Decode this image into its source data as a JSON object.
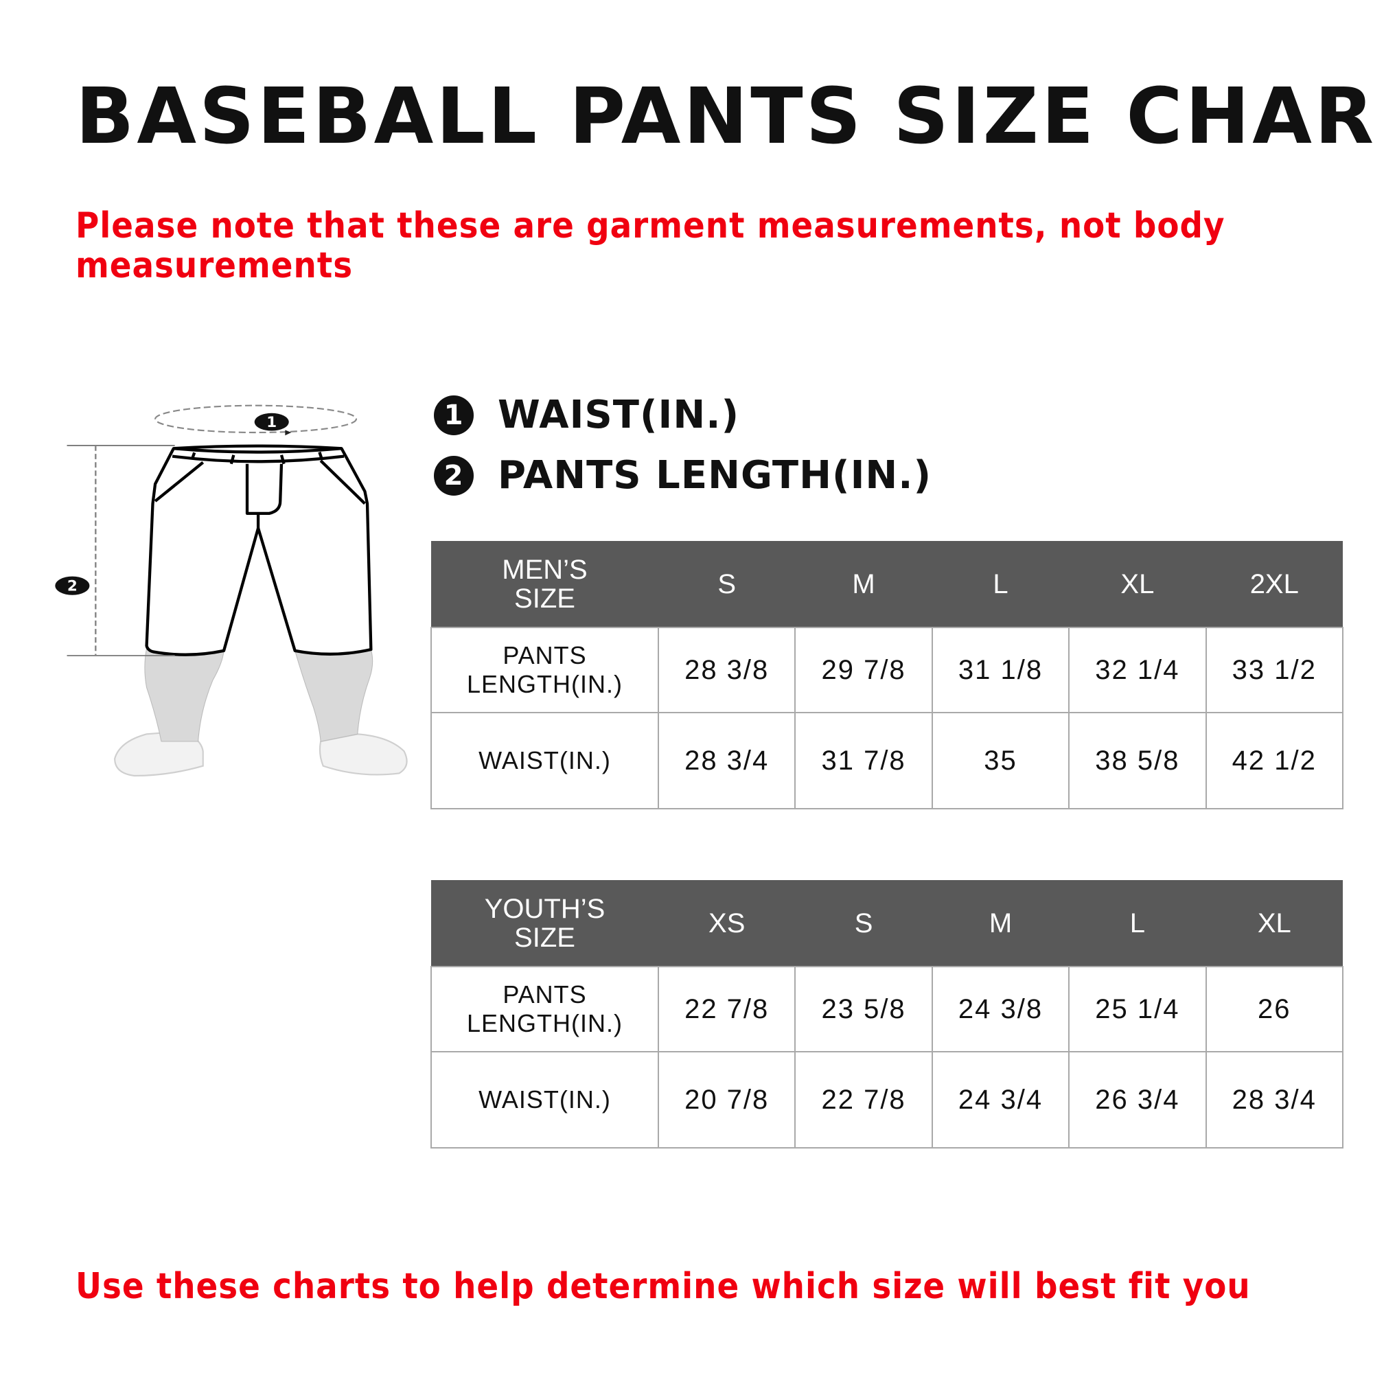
{
  "title": "BASEBALL PANTS SIZE CHART",
  "note_top": "Please note that these are garment measurements, not body measurements",
  "note_bottom": "Use these charts to help determine which size will best fit you",
  "legend": [
    {
      "num": "1",
      "label": "WAIST(IN.)"
    },
    {
      "num": "2",
      "label": "PANTS LENGTH(IN.)"
    }
  ],
  "figure": {
    "badge_waist": "1",
    "badge_length": "2"
  },
  "mens": {
    "header": [
      "MEN’S SIZE",
      "S",
      "M",
      "L",
      "XL",
      "2XL"
    ],
    "rows": [
      {
        "label": "PANTS LENGTH(IN.)",
        "values": [
          "28 3/8",
          "29 7/8",
          "31 1/8",
          "32 1/4",
          "33 1/2"
        ]
      },
      {
        "label": "WAIST(IN.)",
        "values": [
          "28 3/4",
          "31 7/8",
          "35",
          "38 5/8",
          "42 1/2"
        ]
      }
    ]
  },
  "youth": {
    "header": [
      "YOUTH’S SIZE",
      "XS",
      "S",
      "M",
      "L",
      "XL"
    ],
    "rows": [
      {
        "label": "PANTS LENGTH(IN.)",
        "values": [
          "22 7/8",
          "23 5/8",
          "24 3/8",
          "25 1/4",
          "26"
        ]
      },
      {
        "label": "WAIST(IN.)",
        "values": [
          "20 7/8",
          "22 7/8",
          "24 3/4",
          "26 3/4",
          "28 3/4"
        ]
      }
    ]
  },
  "colors": {
    "accent_red": "#f00010",
    "header_gray": "#595959"
  }
}
